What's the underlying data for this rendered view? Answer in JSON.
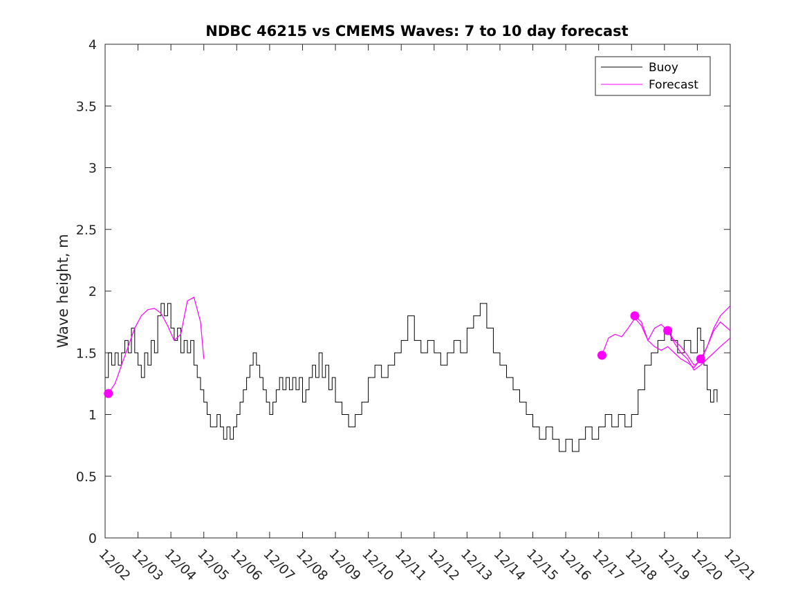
{
  "chart_data": {
    "type": "line",
    "title": "NDBC 46215 vs CMEMS Waves: 7 to 10 day forecast",
    "xlabel": "",
    "ylabel": "Wave height, m",
    "ylim": [
      0,
      4
    ],
    "yticks": [
      0,
      0.5,
      1,
      1.5,
      2,
      2.5,
      3,
      3.5,
      4
    ],
    "ytick_labels": [
      "0",
      "0.5",
      "1",
      "1.5",
      "2",
      "2.5",
      "3",
      "3.5",
      "4"
    ],
    "xlim": [
      0,
      19
    ],
    "xtick_labels": [
      "12/02",
      "12/03",
      "12/04",
      "12/05",
      "12/06",
      "12/07",
      "12/08",
      "12/09",
      "12/10",
      "12/11",
      "12/12",
      "12/13",
      "12/14",
      "12/15",
      "12/16",
      "12/17",
      "12/18",
      "12/19",
      "12/20",
      "12/21"
    ],
    "legend": {
      "position": "top-right",
      "entries": [
        "Buoy",
        "Forecast"
      ]
    },
    "colors": {
      "buoy": "#000000",
      "forecast": "#ff00ff"
    },
    "series": [
      {
        "name": "Buoy",
        "x": [
          0,
          0.1,
          0.2,
          0.3,
          0.4,
          0.5,
          0.6,
          0.7,
          0.8,
          0.9,
          1.0,
          1.1,
          1.2,
          1.3,
          1.4,
          1.5,
          1.6,
          1.7,
          1.8,
          1.9,
          2.0,
          2.1,
          2.2,
          2.3,
          2.4,
          2.5,
          2.6,
          2.7,
          2.8,
          2.9,
          3.0,
          3.1,
          3.2,
          3.3,
          3.4,
          3.5,
          3.6,
          3.7,
          3.8,
          3.9,
          4.0,
          4.1,
          4.2,
          4.3,
          4.4,
          4.5,
          4.6,
          4.7,
          4.8,
          4.9,
          5.0,
          5.1,
          5.2,
          5.3,
          5.4,
          5.5,
          5.6,
          5.7,
          5.8,
          5.9,
          6.0,
          6.1,
          6.2,
          6.3,
          6.4,
          6.5,
          6.6,
          6.7,
          6.8,
          6.9,
          7.0,
          7.2,
          7.4,
          7.6,
          7.8,
          8.0,
          8.2,
          8.4,
          8.6,
          8.8,
          9.0,
          9.2,
          9.4,
          9.6,
          9.8,
          10.0,
          10.2,
          10.4,
          10.6,
          10.8,
          11.0,
          11.2,
          11.4,
          11.6,
          11.8,
          12.0,
          12.2,
          12.4,
          12.6,
          12.8,
          13.0,
          13.2,
          13.4,
          13.6,
          13.8,
          14.0,
          14.2,
          14.4,
          14.6,
          14.8,
          15.0,
          15.2,
          15.4,
          15.6,
          15.8,
          16.0,
          16.2,
          16.4,
          16.6,
          16.8,
          17.0,
          17.2,
          17.4,
          17.6,
          17.8,
          18.0,
          18.1,
          18.2,
          18.3,
          18.4,
          18.5,
          18.6
        ],
        "values": [
          1.3,
          1.5,
          1.4,
          1.5,
          1.4,
          1.5,
          1.6,
          1.5,
          1.7,
          1.5,
          1.4,
          1.3,
          1.5,
          1.4,
          1.6,
          1.5,
          1.8,
          1.9,
          1.8,
          1.9,
          1.7,
          1.6,
          1.7,
          1.5,
          1.6,
          1.5,
          1.6,
          1.4,
          1.3,
          1.2,
          1.1,
          1.0,
          0.9,
          0.9,
          1.0,
          0.9,
          0.8,
          0.9,
          0.8,
          0.9,
          1.0,
          1.1,
          1.2,
          1.3,
          1.4,
          1.5,
          1.4,
          1.3,
          1.2,
          1.1,
          1.0,
          1.1,
          1.2,
          1.3,
          1.2,
          1.3,
          1.2,
          1.3,
          1.2,
          1.3,
          1.1,
          1.2,
          1.3,
          1.4,
          1.3,
          1.5,
          1.3,
          1.4,
          1.2,
          1.3,
          1.1,
          1.0,
          0.9,
          1.0,
          1.1,
          1.3,
          1.4,
          1.3,
          1.4,
          1.5,
          1.6,
          1.8,
          1.6,
          1.5,
          1.6,
          1.5,
          1.4,
          1.5,
          1.6,
          1.5,
          1.7,
          1.8,
          1.9,
          1.7,
          1.5,
          1.4,
          1.3,
          1.2,
          1.1,
          1.0,
          0.9,
          0.8,
          0.9,
          0.8,
          0.7,
          0.8,
          0.7,
          0.8,
          0.9,
          0.8,
          0.9,
          1.0,
          0.9,
          1.0,
          0.9,
          1.0,
          1.2,
          1.4,
          1.5,
          1.6,
          1.7,
          1.6,
          1.5,
          1.6,
          1.5,
          1.7,
          1.6,
          1.4,
          1.2,
          1.1,
          1.2,
          1.1
        ]
      },
      {
        "name": "Forecast",
        "segments": [
          {
            "x": [
              0.1,
              0.3,
              0.5,
              0.7,
              0.9,
              1.1,
              1.3,
              1.5,
              1.7,
              1.9,
              2.1,
              2.3,
              2.5,
              2.7,
              2.9,
              3.0
            ],
            "values": [
              1.17,
              1.25,
              1.4,
              1.55,
              1.7,
              1.8,
              1.85,
              1.86,
              1.82,
              1.72,
              1.6,
              1.65,
              1.92,
              1.95,
              1.75,
              1.45
            ]
          },
          {
            "x": [
              15.1,
              15.3,
              15.5,
              15.7,
              15.9,
              16.1,
              16.3,
              16.5,
              16.7,
              16.9,
              17.1,
              17.3,
              17.5,
              17.7,
              17.9,
              18.1,
              18.3,
              18.5,
              18.7,
              19.0
            ],
            "values": [
              1.48,
              1.62,
              1.65,
              1.63,
              1.7,
              1.78,
              1.72,
              1.6,
              1.55,
              1.52,
              1.55,
              1.5,
              1.45,
              1.42,
              1.38,
              1.45,
              1.55,
              1.7,
              1.8,
              1.88
            ]
          },
          {
            "x": [
              16.1,
              16.3,
              16.5,
              16.7,
              16.9,
              17.1,
              17.3,
              17.5,
              17.7,
              17.9,
              18.1,
              18.3,
              18.5,
              18.7,
              19.0
            ],
            "values": [
              1.8,
              1.75,
              1.6,
              1.7,
              1.73,
              1.68,
              1.6,
              1.55,
              1.48,
              1.4,
              1.43,
              1.55,
              1.68,
              1.75,
              1.68
            ]
          },
          {
            "x": [
              17.1,
              17.3,
              17.5,
              17.7,
              17.9,
              18.1,
              18.3,
              18.5,
              18.7,
              19.0
            ],
            "values": [
              1.68,
              1.58,
              1.5,
              1.45,
              1.36,
              1.4,
              1.45,
              1.5,
              1.55,
              1.62
            ]
          }
        ],
        "markers": {
          "x": [
            0.1,
            15.1,
            16.1,
            17.1,
            18.1
          ],
          "values": [
            1.17,
            1.48,
            1.8,
            1.68,
            1.45
          ]
        }
      }
    ]
  }
}
